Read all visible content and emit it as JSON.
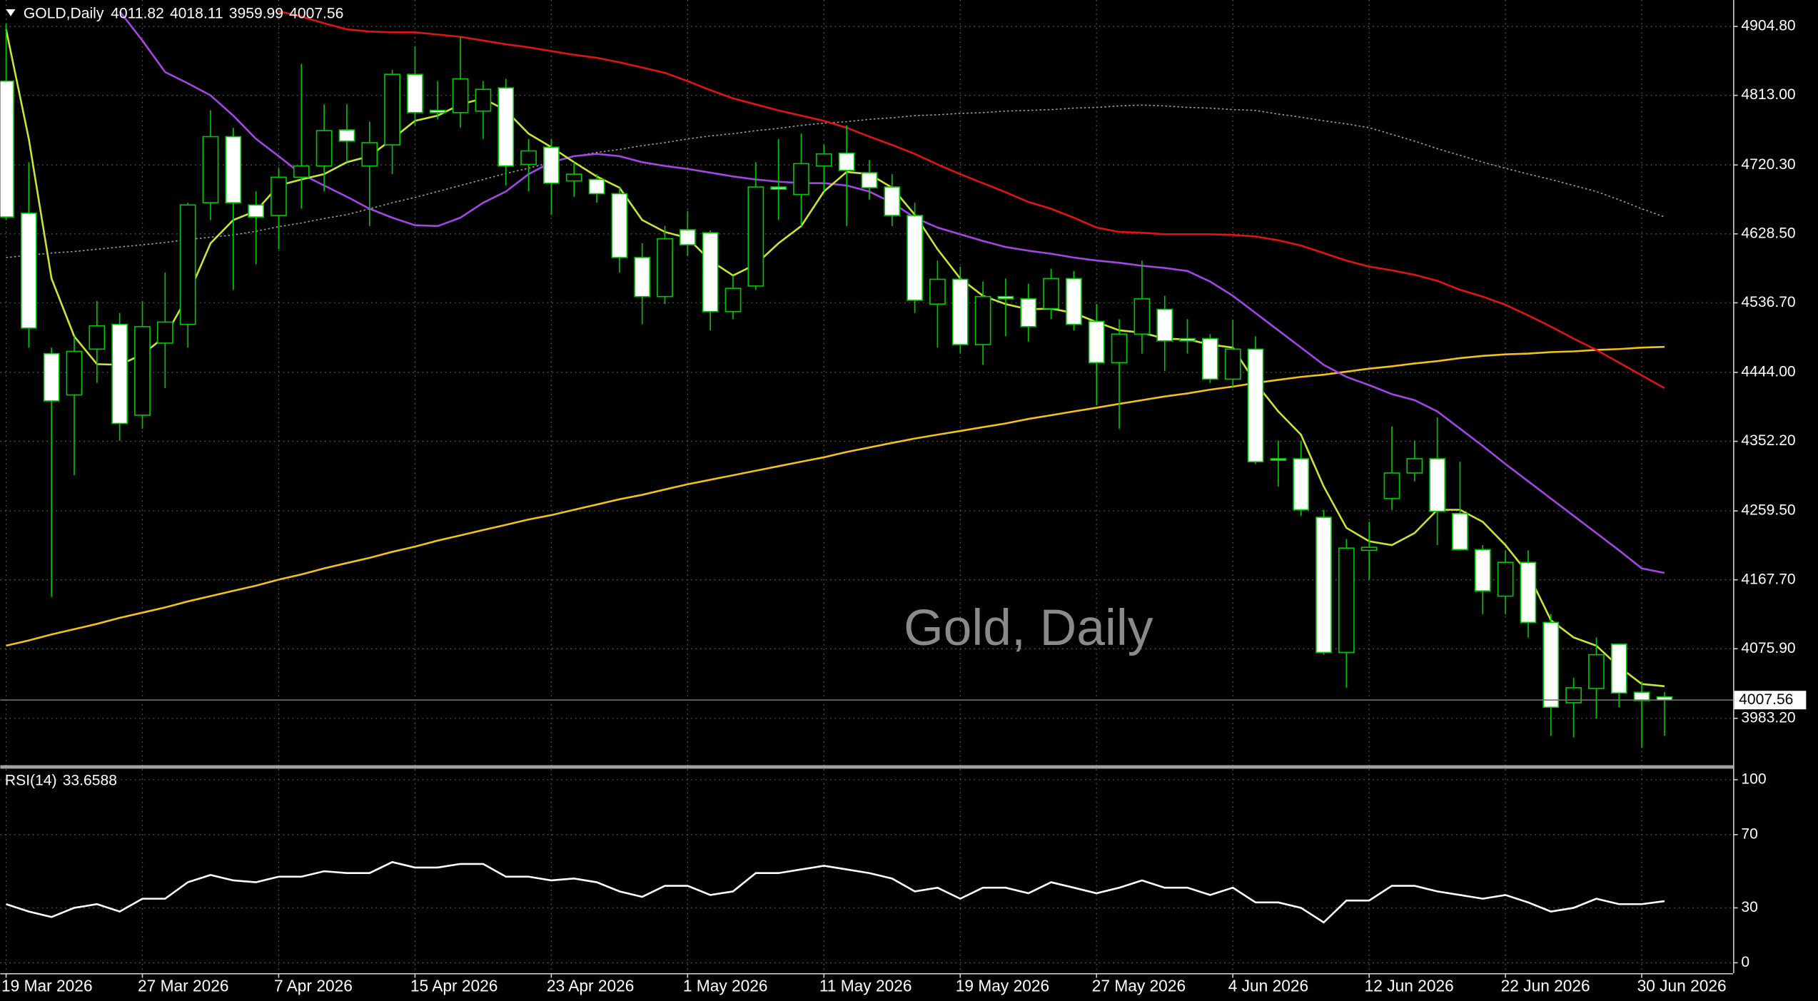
{
  "chart_data": [
    {
      "type": "candlestick",
      "title": "GOLD,Daily",
      "watermark": "Gold, Daily",
      "categories": [
        "19 Mar 2026",
        null,
        null,
        null,
        null,
        null,
        "27 Mar 2026",
        null,
        null,
        null,
        null,
        null,
        "7 Apr 2026",
        null,
        null,
        null,
        null,
        null,
        "15 Apr 2026",
        null,
        null,
        null,
        null,
        null,
        "23 Apr 2026",
        null,
        null,
        null,
        null,
        null,
        "1 May 2026",
        null,
        null,
        null,
        null,
        null,
        "11 May 2026",
        null,
        null,
        null,
        null,
        null,
        "19 May 2026",
        null,
        null,
        null,
        null,
        null,
        "27 May 2026",
        null,
        null,
        null,
        null,
        null,
        "4 Jun 2026",
        null,
        null,
        null,
        null,
        null,
        "12 Jun 2026",
        null,
        null,
        null,
        null,
        null,
        "22 Jun 2026",
        null,
        null,
        null,
        null,
        null,
        "30 Jun 2026",
        null
      ],
      "open": [
        4832,
        4656,
        4469,
        4414,
        4475,
        4508,
        4387,
        4483,
        4508,
        4670,
        4758,
        4667,
        4653,
        4704,
        4719,
        4767,
        4719,
        4747,
        4841,
        4793,
        4790,
        4792,
        4823,
        4721,
        4744,
        4699,
        4701,
        4682,
        4597,
        4545,
        4634,
        4630,
        4525,
        4559,
        4691,
        4681,
        4719,
        4736,
        4710,
        4691,
        4653,
        4535,
        4568,
        4481,
        4545,
        4542,
        4529,
        4569,
        4512,
        4457,
        4495,
        4528,
        4489,
        4489,
        4435,
        4475,
        4329,
        4329,
        4251,
        4071,
        4207,
        4276,
        4310,
        4329,
        4256,
        4208,
        4146,
        4191,
        4111,
        4004,
        4023,
        4082,
        4018,
        4011.82
      ],
      "high": [
        4909,
        4724,
        4477,
        4492,
        4539,
        4523,
        4539,
        4577,
        4670,
        4793,
        4770,
        4685,
        4716,
        4855,
        4801,
        4801,
        4778,
        4847,
        4878,
        4832,
        4891,
        4832,
        4835,
        4755,
        4755,
        4724,
        4708,
        4690,
        4616,
        4639,
        4659,
        4633,
        4573,
        4724,
        4755,
        4762,
        4747,
        4773,
        4727,
        4708,
        4670,
        4593,
        4585,
        4565,
        4569,
        4562,
        4582,
        4579,
        4535,
        4515,
        4593,
        4546,
        4515,
        4495,
        4514,
        4492,
        4353,
        4353,
        4261,
        4222,
        4245,
        4372,
        4353,
        4384,
        4325,
        4214,
        4207,
        4207,
        4122,
        4037,
        4091,
        4083,
        4032,
        4018.11
      ],
      "low": [
        4647,
        4477,
        4145,
        4307,
        4430,
        4353,
        4369,
        4423,
        4477,
        4647,
        4554,
        4588,
        4608,
        4662,
        4685,
        4724,
        4639,
        4708,
        4773,
        4781,
        4770,
        4755,
        4693,
        4685,
        4654,
        4678,
        4670,
        4577,
        4508,
        4535,
        4599,
        4500,
        4515,
        4554,
        4647,
        4639,
        4685,
        4639,
        4674,
        4639,
        4523,
        4477,
        4469,
        4454,
        4492,
        4485,
        4515,
        4500,
        4400,
        4369,
        4469,
        4446,
        4469,
        4430,
        4423,
        4322,
        4292,
        4253,
        4068,
        4024,
        4168,
        4261,
        4299,
        4214,
        4207,
        4122,
        4122,
        4091,
        3960,
        3958,
        3983,
        3998,
        3944,
        3959.99
      ],
      "close": [
        4651,
        4503,
        4406,
        4472,
        4506,
        4376,
        4505,
        4511,
        4667,
        4758,
        4670,
        4651,
        4704,
        4719,
        4766,
        4752,
        4750,
        4841,
        4790,
        4790,
        4835,
        4821,
        4719,
        4739,
        4696,
        4708,
        4682,
        4597,
        4545,
        4622,
        4614,
        4525,
        4556,
        4691,
        4688,
        4722,
        4735,
        4713,
        4690,
        4653,
        4540,
        4568,
        4481,
        4545,
        4542,
        4505,
        4569,
        4508,
        4457,
        4495,
        4542,
        4486,
        4486,
        4435,
        4475,
        4325,
        4327,
        4261,
        4071,
        4210,
        4211,
        4310,
        4329,
        4259,
        4208,
        4153,
        4191,
        4111,
        3998,
        4024,
        4068,
        4017,
        4007,
        4007.56
      ],
      "up_color": "#000000",
      "down_color": "#ffffff",
      "wick_color": "#00c800",
      "ylim": [
        3920,
        4940
      ],
      "yticks": [
        {
          "value": 4904.8,
          "label": "4904.80"
        },
        {
          "value": 4813,
          "label": "4813.00"
        },
        {
          "value": 4720.3,
          "label": "4720.30"
        },
        {
          "value": 4628.5,
          "label": "4628.50"
        },
        {
          "value": 4536.7,
          "label": "4536.70"
        },
        {
          "value": 4444,
          "label": "4444.00"
        },
        {
          "value": 4352.2,
          "label": "4352.20"
        },
        {
          "value": 4259.5,
          "label": "4259.50"
        },
        {
          "value": 4167.7,
          "label": "4167.70"
        },
        {
          "value": 4075.9,
          "label": "4075.90"
        },
        {
          "value": 3983.2,
          "label": "3983.20"
        }
      ],
      "grid": true,
      "series": [
        {
          "color": "#f2c21b",
          "values": [
            4080,
            4087,
            4095,
            4102,
            4109,
            4117,
            4124,
            4131,
            4139,
            4146,
            4153,
            4160,
            4168,
            4175,
            4183,
            4190,
            4197,
            4205,
            4212,
            4220,
            4227,
            4234,
            4241,
            4248,
            4254,
            4261,
            4268,
            4275,
            4281,
            4288,
            4295,
            4301,
            4307,
            4313,
            4319,
            4325,
            4331,
            4338,
            4344,
            4350,
            4356,
            4361,
            4366,
            4371,
            4376,
            4382,
            4387,
            4392,
            4397,
            4402,
            4407,
            4412,
            4416,
            4421,
            4425,
            4430,
            4434,
            4438,
            4441,
            4445,
            4449,
            4452,
            4456,
            4459,
            4463,
            4466,
            4468,
            4469,
            4471,
            4472,
            4474,
            4475,
            4477,
            4478
          ]
        },
        {
          "color": "#a0a0a0",
          "style": "dotted",
          "values": [
            4597,
            4600,
            4603,
            4605,
            4608,
            4611,
            4614,
            4617,
            4621,
            4624,
            4627,
            4632,
            4638,
            4643,
            4649,
            4654,
            4662,
            4670,
            4677,
            4685,
            4693,
            4701,
            4709,
            4716,
            4724,
            4732,
            4737,
            4741,
            4746,
            4750,
            4755,
            4759,
            4762,
            4766,
            4769,
            4773,
            4776,
            4778,
            4781,
            4783,
            4786,
            4787,
            4789,
            4790,
            4792,
            4793,
            4794,
            4796,
            4797,
            4799,
            4800,
            4799,
            4797,
            4796,
            4794,
            4793,
            4788,
            4784,
            4779,
            4775,
            4770,
            4761,
            4752,
            4742,
            4733,
            4724,
            4716,
            4708,
            4701,
            4693,
            4685,
            4674,
            4662,
            4651
          ]
        },
        {
          "color": "#e01414",
          "values": [
            null,
            null,
            null,
            null,
            null,
            null,
            null,
            null,
            null,
            null,
            null,
            null,
            4925,
            4918,
            4909,
            4901,
            4898,
            4897,
            4897,
            4894,
            4891,
            4886,
            4881,
            4877,
            4872,
            4867,
            4863,
            4857,
            4850,
            4843,
            4832,
            4820,
            4809,
            4801,
            4793,
            4786,
            4779,
            4770,
            4758,
            4747,
            4735,
            4721,
            4708,
            4696,
            4684,
            4671,
            4662,
            4650,
            4637,
            4631,
            4630,
            4628,
            4628,
            4628,
            4627,
            4625,
            4620,
            4613,
            4603,
            4593,
            4585,
            4580,
            4574,
            4566,
            4554,
            4545,
            4534,
            4520,
            4505,
            4489,
            4474,
            4457,
            4440,
            4423
          ]
        },
        {
          "color": "#a445e6",
          "values": [
            null,
            null,
            null,
            null,
            null,
            4925,
            4886,
            4844,
            4829,
            4813,
            4786,
            4755,
            4732,
            4708,
            4693,
            4678,
            4662,
            4650,
            4640,
            4639,
            4650,
            4670,
            4685,
            4708,
            4724,
            4732,
            4735,
            4732,
            4724,
            4719,
            4715,
            4710,
            4705,
            4701,
            4698,
            4696,
            4696,
            4693,
            4685,
            4670,
            4650,
            4637,
            4628,
            4619,
            4611,
            4606,
            4602,
            4597,
            4593,
            4590,
            4586,
            4583,
            4579,
            4565,
            4546,
            4523,
            4500,
            4477,
            4454,
            4438,
            4427,
            4415,
            4407,
            4392,
            4369,
            4346,
            4322,
            4299,
            4276,
            4253,
            4230,
            4207,
            4183,
            4177
          ]
        },
        {
          "color": "#c8e632",
          "values": [
            4901,
            4755,
            4569,
            4492,
            4455,
            4454,
            4468,
            4492,
            4546,
            4616,
            4647,
            4659,
            4693,
            4701,
            4708,
            4724,
            4732,
            4755,
            4779,
            4786,
            4801,
            4809,
            4793,
            4762,
            4744,
            4724,
            4705,
            4690,
            4647,
            4631,
            4623,
            4593,
            4573,
            4588,
            4616,
            4639,
            4685,
            4711,
            4708,
            4690,
            4654,
            4608,
            4569,
            4546,
            4535,
            4528,
            4529,
            4523,
            4511,
            4500,
            4497,
            4489,
            4488,
            4481,
            4477,
            4430,
            4392,
            4361,
            4292,
            4237,
            4219,
            4214,
            4230,
            4261,
            4261,
            4245,
            4214,
            4176,
            4114,
            4091,
            4080,
            4052,
            4029,
            4026
          ]
        }
      ]
    },
    {
      "type": "line",
      "title": "RSI(14)",
      "ylim": [
        0,
        100
      ],
      "yticks": [
        100,
        70,
        30,
        0
      ],
      "grid": true,
      "series": [
        {
          "color": "#ffffff",
          "values": [
            32,
            28,
            25,
            30,
            32,
            28,
            35,
            35,
            44,
            48,
            45,
            44,
            47,
            47,
            50,
            49,
            49,
            55,
            52,
            52,
            54,
            54,
            47,
            47,
            45,
            46,
            44,
            39,
            36,
            42,
            42,
            37,
            39,
            49,
            49,
            51,
            53,
            51,
            49,
            46,
            39,
            41,
            35,
            41,
            41,
            38,
            44,
            41,
            38,
            41,
            45,
            41,
            41,
            37,
            41,
            33,
            33,
            30,
            22,
            34,
            34,
            42,
            42,
            39,
            37,
            35,
            37,
            33,
            28,
            30,
            35,
            32,
            32,
            33.6588
          ]
        }
      ]
    }
  ]
}
